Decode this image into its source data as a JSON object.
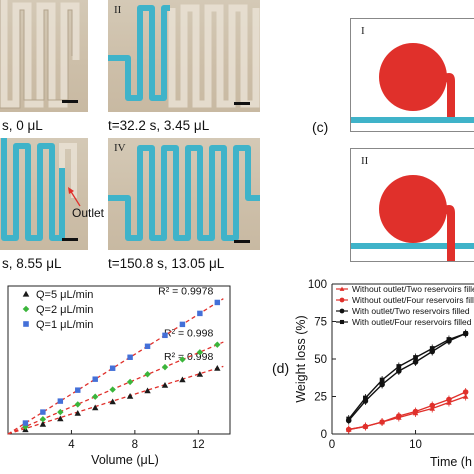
{
  "panel_a": {
    "photos": [
      {
        "roman": "",
        "caption": "s, 0 μL"
      },
      {
        "roman": "II",
        "caption": "t=32.2 s, 3.45 μL"
      },
      {
        "roman": "",
        "caption": "s, 8.55 μL"
      },
      {
        "roman": "IV",
        "caption": "t=150.8 s, 13.05 μL"
      }
    ],
    "outlet_label": "Outlet"
  },
  "panel_c": {
    "letter": "(c)",
    "boxes": [
      {
        "roman": "I"
      },
      {
        "roman": "II"
      }
    ]
  },
  "panel_d_letter": "(d)",
  "colors": {
    "channel_blue": "#3fb3c9",
    "reservoir_red": "#e0302b",
    "fit_red": "#e0302b",
    "q5": "#1a1a1a",
    "q2": "#3bb53b",
    "q1": "#4470d8"
  },
  "chart_data": [
    {
      "type": "scatter",
      "xlabel": "Volume (μL)",
      "ylabel": "",
      "xlim": [
        0,
        14
      ],
      "ylim": [
        0,
        27
      ],
      "x_ticks": [
        "4",
        "8",
        "12"
      ],
      "series": [
        {
          "name": "Q=5 μL/min",
          "marker": "triangle",
          "color": "#1a1a1a",
          "x": [
            1.1,
            2.2,
            3.3,
            4.4,
            5.5,
            6.6,
            7.7,
            8.8,
            9.9,
            11.0,
            12.1,
            13.2
          ],
          "y": [
            0.8,
            1.8,
            2.8,
            3.8,
            4.8,
            5.9,
            6.9,
            7.9,
            8.9,
            9.9,
            10.9,
            12.0
          ],
          "annotation": "R² = 0.998"
        },
        {
          "name": "Q=2 μL/min",
          "marker": "diamond",
          "color": "#3bb53b",
          "x": [
            1.1,
            2.2,
            3.3,
            4.4,
            5.5,
            6.6,
            7.7,
            8.8,
            9.9,
            11.0,
            12.1,
            13.2
          ],
          "y": [
            1.3,
            2.7,
            4.0,
            5.4,
            6.8,
            8.1,
            9.5,
            10.9,
            12.2,
            13.6,
            14.9,
            16.3
          ],
          "annotation": "R² = 0.998"
        },
        {
          "name": "Q=1 μL/min",
          "marker": "square",
          "color": "#4470d8",
          "x": [
            1.1,
            2.2,
            3.3,
            4.4,
            5.5,
            6.6,
            7.7,
            8.8,
            9.9,
            11.0,
            12.1,
            13.2
          ],
          "y": [
            2.0,
            4.0,
            6.0,
            8.0,
            10.0,
            12.0,
            14.0,
            16.0,
            18.0,
            20.0,
            22.0,
            24.0
          ],
          "annotation": "R² = 0.9978"
        }
      ]
    },
    {
      "type": "line",
      "xlabel": "Time (h",
      "ylabel": "Weight loss (%)",
      "xlim": [
        0,
        17
      ],
      "ylim": [
        0,
        100
      ],
      "y_ticks": [
        "0",
        "25",
        "50",
        "75",
        "100"
      ],
      "x_ticks": [
        "0",
        "10"
      ],
      "series": [
        {
          "name": "Without outlet/Two reservoirs filled",
          "marker": "triangle",
          "color": "#e0302b",
          "x": [
            2,
            4,
            6,
            8,
            10,
            12,
            14,
            16
          ],
          "y": [
            3,
            5,
            8,
            11,
            14,
            17,
            21,
            25
          ]
        },
        {
          "name": "Without outlet/Four reservoirs filled",
          "marker": "circle",
          "color": "#e0302b",
          "x": [
            2,
            4,
            6,
            8,
            10,
            12,
            14,
            16
          ],
          "y": [
            3,
            5,
            8,
            12,
            15,
            19,
            23,
            28
          ]
        },
        {
          "name": "With outlet/Two reservoirs filled",
          "marker": "circle",
          "color": "#111111",
          "x": [
            2,
            4,
            6,
            8,
            10,
            12,
            14,
            16
          ],
          "y": [
            9,
            22,
            33,
            42,
            48,
            55,
            62,
            67
          ]
        },
        {
          "name": "With outlet/Four reservoirs filled",
          "marker": "square",
          "color": "#111111",
          "x": [
            2,
            4,
            6,
            8,
            10,
            12,
            14,
            16
          ],
          "y": [
            10,
            24,
            36,
            45,
            51,
            57,
            63,
            67
          ]
        }
      ]
    }
  ]
}
